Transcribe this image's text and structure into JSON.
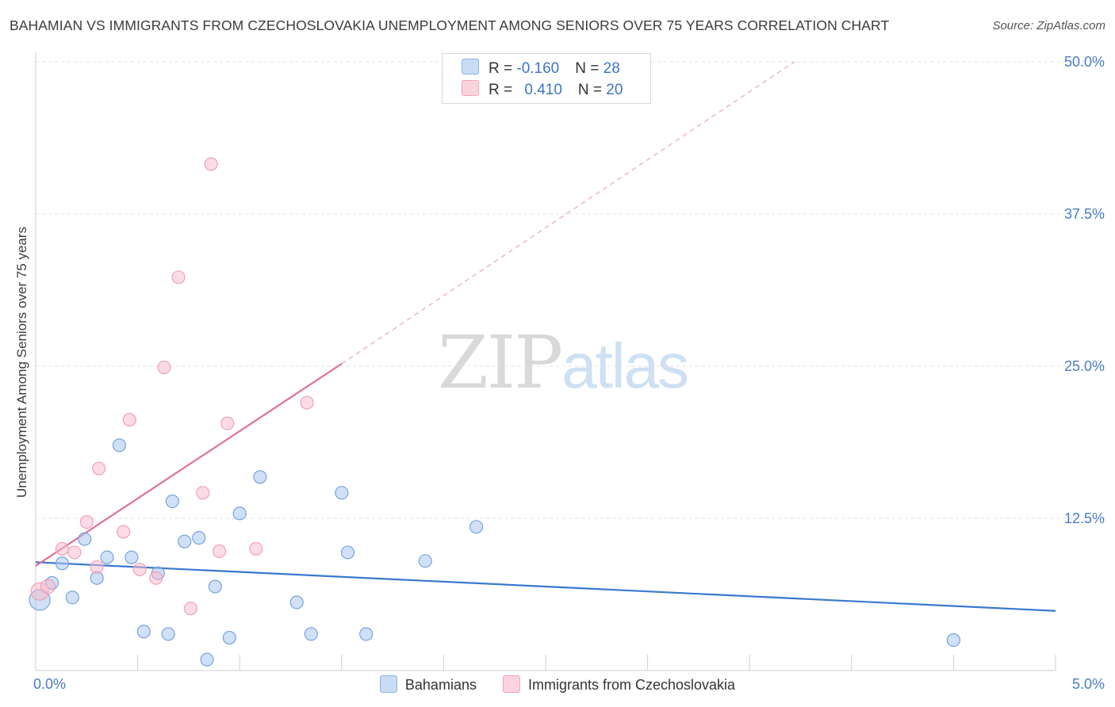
{
  "header": {
    "title": "BAHAMIAN VS IMMIGRANTS FROM CZECHOSLOVAKIA UNEMPLOYMENT AMONG SENIORS OVER 75 YEARS CORRELATION CHART",
    "source": "Source: ZipAtlas.com"
  },
  "watermark": {
    "zip": "ZIP",
    "atlas": "atlas"
  },
  "legend": {
    "rows": [
      {
        "r_label": "R = ",
        "r_value": "-0.160",
        "n_label": "N = ",
        "n_value": "28",
        "color": "#a9c7ef"
      },
      {
        "r_label": "R = ",
        "r_value": "0.410",
        "n_label": "N = ",
        "n_value": "20",
        "color": "#f7b8cb"
      }
    ]
  },
  "bottom_legend": {
    "series1": "Bahamians",
    "series2": "Immigrants from Czechoslovakia"
  },
  "chart_data": {
    "type": "scatter",
    "title": "BAHAMIAN VS IMMIGRANTS FROM CZECHOSLOVAKIA UNEMPLOYMENT AMONG SENIORS OVER 75 YEARS CORRELATION CHART",
    "xlabel": "",
    "ylabel": "Unemployment Among Seniors over 75 years",
    "xlim": [
      0,
      5
    ],
    "ylim": [
      0,
      50
    ],
    "x_tick_labels": [
      "0.0%",
      "5.0%"
    ],
    "y_ticks": [
      12.5,
      25,
      37.5,
      50
    ],
    "y_tick_labels": [
      "12.5%",
      "25.0%",
      "37.5%",
      "50.0%"
    ],
    "grid": true,
    "series": [
      {
        "name": "Bahamians",
        "color": "#a9c7ef",
        "line_color": "#3a78cf",
        "points": [
          [
            0.02,
            5.8
          ],
          [
            0.08,
            7.2
          ],
          [
            0.13,
            8.8
          ],
          [
            0.18,
            6.0
          ],
          [
            0.24,
            10.8
          ],
          [
            0.3,
            7.6
          ],
          [
            0.35,
            9.3
          ],
          [
            0.41,
            18.5
          ],
          [
            0.47,
            9.3
          ],
          [
            0.53,
            3.2
          ],
          [
            0.6,
            8.0
          ],
          [
            0.65,
            3.0
          ],
          [
            0.67,
            13.9
          ],
          [
            0.73,
            10.6
          ],
          [
            0.8,
            10.9
          ],
          [
            0.84,
            0.9
          ],
          [
            0.88,
            6.9
          ],
          [
            0.95,
            2.7
          ],
          [
            1.0,
            12.9
          ],
          [
            1.1,
            15.9
          ],
          [
            1.28,
            5.6
          ],
          [
            1.35,
            3.0
          ],
          [
            1.5,
            14.6
          ],
          [
            1.53,
            9.7
          ],
          [
            1.62,
            3.0
          ],
          [
            1.91,
            9.0
          ],
          [
            2.16,
            11.8
          ],
          [
            4.5,
            2.5
          ]
        ],
        "trend": {
          "x": [
            0.0,
            5.0
          ],
          "y": [
            8.9,
            4.9
          ],
          "dashed_extension": false
        }
      },
      {
        "name": "Immigrants from Czechoslovakia",
        "color": "#f7b8cb",
        "line_color": "#e0709a",
        "points": [
          [
            0.02,
            6.5
          ],
          [
            0.06,
            6.9
          ],
          [
            0.13,
            10.0
          ],
          [
            0.19,
            9.7
          ],
          [
            0.25,
            12.2
          ],
          [
            0.3,
            8.5
          ],
          [
            0.31,
            16.6
          ],
          [
            0.43,
            11.4
          ],
          [
            0.46,
            20.6
          ],
          [
            0.51,
            8.3
          ],
          [
            0.59,
            7.6
          ],
          [
            0.63,
            24.9
          ],
          [
            0.7,
            32.3
          ],
          [
            0.76,
            5.1
          ],
          [
            0.82,
            14.6
          ],
          [
            0.86,
            41.6
          ],
          [
            0.9,
            9.8
          ],
          [
            0.94,
            20.3
          ],
          [
            1.08,
            10.0
          ],
          [
            1.33,
            22.0
          ]
        ],
        "trend": {
          "x": [
            0.0,
            1.5
          ],
          "y": [
            8.6,
            25.2
          ],
          "extension_to": [
            3.72,
            50.0
          ],
          "dashed_extension": true
        }
      }
    ]
  }
}
